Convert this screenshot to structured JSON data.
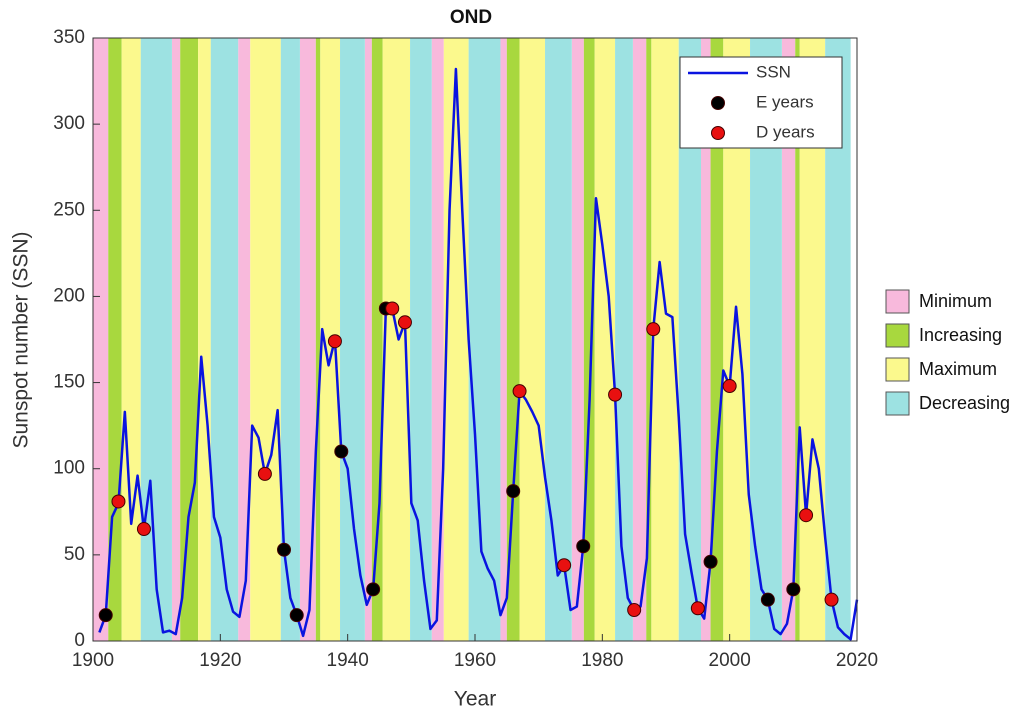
{
  "chart_data": {
    "type": "line",
    "title": "OND",
    "x_label": "Year",
    "y_label": "Sunspot number (SSN)",
    "xlim": [
      1900,
      2020
    ],
    "xticks": [
      1900,
      1920,
      1940,
      1960,
      1980,
      2000,
      2020
    ],
    "ylim": [
      0,
      350
    ],
    "yticks": [
      0,
      50,
      100,
      150,
      200,
      250,
      300,
      350
    ],
    "legend": "upper right",
    "series": [
      {
        "name": "SSN",
        "style": "line",
        "color": "#0a14e0",
        "x": [
          1901,
          1902,
          1903,
          1904,
          1905,
          1906,
          1907,
          1908,
          1909,
          1910,
          1911,
          1912,
          1913,
          1914,
          1915,
          1916,
          1917,
          1918,
          1919,
          1920,
          1921,
          1922,
          1923,
          1924,
          1925,
          1926,
          1927,
          1928,
          1929,
          1930,
          1931,
          1932,
          1933,
          1934,
          1935,
          1936,
          1937,
          1938,
          1939,
          1940,
          1941,
          1942,
          1943,
          1944,
          1945,
          1946,
          1947,
          1948,
          1949,
          1950,
          1951,
          1952,
          1953,
          1954,
          1955,
          1956,
          1957,
          1958,
          1959,
          1960,
          1961,
          1962,
          1963,
          1964,
          1965,
          1966,
          1967,
          1968,
          1969,
          1970,
          1971,
          1972,
          1973,
          1974,
          1975,
          1976,
          1977,
          1978,
          1979,
          1980,
          1981,
          1982,
          1983,
          1984,
          1985,
          1986,
          1987,
          1988,
          1989,
          1990,
          1991,
          1992,
          1993,
          1994,
          1995,
          1996,
          1997,
          1998,
          1999,
          2000,
          2001,
          2002,
          2003,
          2004,
          2005,
          2006,
          2007,
          2008,
          2009,
          2010,
          2011,
          2012,
          2013,
          2014,
          2015,
          2016,
          2017,
          2018,
          2019,
          2020
        ],
        "values": [
          5,
          15,
          72,
          80,
          133,
          68,
          96,
          65,
          93,
          30,
          5,
          6,
          4,
          25,
          72,
          92,
          165,
          125,
          72,
          60,
          30,
          17,
          14,
          35,
          125,
          118,
          97,
          108,
          134,
          53,
          25,
          15,
          3,
          18,
          110,
          181,
          160,
          175,
          110,
          100,
          65,
          38,
          21,
          30,
          80,
          193,
          193,
          175,
          185,
          80,
          70,
          35,
          7,
          12,
          100,
          250,
          332,
          250,
          175,
          120,
          52,
          42,
          35,
          15,
          25,
          87,
          145,
          140,
          133,
          125,
          95,
          70,
          38,
          44,
          18,
          20,
          55,
          140,
          257,
          230,
          200,
          143,
          55,
          25,
          18,
          20,
          48,
          181,
          220,
          190,
          188,
          130,
          62,
          40,
          19,
          13,
          46,
          110,
          157,
          148,
          194,
          155,
          85,
          55,
          30,
          24,
          7,
          4,
          10,
          30,
          124,
          73,
          117,
          100,
          60,
          24,
          8,
          4,
          1,
          24
        ]
      },
      {
        "name": "E years",
        "style": "marker",
        "color": "#000000",
        "x": [
          1902,
          1930,
          1932,
          1939,
          1944,
          1946,
          1966,
          1977,
          1997,
          2006,
          2010
        ],
        "values": [
          15,
          53,
          15,
          110,
          30,
          193,
          87,
          55,
          46,
          24,
          30
        ]
      },
      {
        "name": "D years",
        "style": "marker",
        "color": "#e81010",
        "x": [
          1904,
          1908,
          1927,
          1938,
          1947,
          1949,
          1967,
          1974,
          1982,
          1985,
          1988,
          1995,
          2000,
          2012,
          2016
        ],
        "values": [
          81,
          65,
          97,
          174,
          193,
          185,
          145,
          44,
          143,
          18,
          181,
          19,
          148,
          73,
          24
        ]
      }
    ],
    "phases": [
      {
        "name": "Minimum",
        "color": "#f8b9dc",
        "spans": [
          [
            1900,
            1902.4
          ],
          [
            1912.4,
            1913.7
          ],
          [
            1922.8,
            1924.7
          ],
          [
            1932.5,
            1935
          ],
          [
            1942.7,
            1943.8
          ],
          [
            1953.2,
            1955.1
          ],
          [
            1964,
            1965
          ],
          [
            1975.2,
            1977.1
          ],
          [
            1984.8,
            1986.9
          ],
          [
            1995.5,
            1997
          ],
          [
            2008.2,
            2010.3
          ]
        ]
      },
      {
        "name": "Increasing",
        "color": "#a8d83e",
        "spans": [
          [
            1902.4,
            1904.5
          ],
          [
            1913.7,
            1916.5
          ],
          [
            1935,
            1935.7
          ],
          [
            1943.8,
            1945.5
          ],
          [
            1965,
            1967
          ],
          [
            1977.1,
            1978.8
          ],
          [
            1986.9,
            1987.7
          ],
          [
            1997,
            1999
          ],
          [
            2010.3,
            2011
          ]
        ]
      },
      {
        "name": "Maximum",
        "color": "#fbf98d",
        "spans": [
          [
            1904.5,
            1907.5
          ],
          [
            1916.5,
            1918.5
          ],
          [
            1924.7,
            1929.5
          ],
          [
            1935.7,
            1938.8
          ],
          [
            1945.5,
            1949.8
          ],
          [
            1955.1,
            1959
          ],
          [
            1967,
            1971
          ],
          [
            1978.8,
            1982
          ],
          [
            1987.7,
            1992
          ],
          [
            1999,
            2003.2
          ],
          [
            2011,
            2015
          ]
        ]
      },
      {
        "name": "Decreasing",
        "color": "#9de2e2",
        "spans": [
          [
            1907.5,
            1912.4
          ],
          [
            1918.5,
            1922.8
          ],
          [
            1929.5,
            1932.5
          ],
          [
            1938.8,
            1942.7
          ],
          [
            1949.8,
            1953.2
          ],
          [
            1959,
            1964
          ],
          [
            1971,
            1975.2
          ],
          [
            1982,
            1984.8
          ],
          [
            1992,
            1995.5
          ],
          [
            2003.2,
            2008.2
          ],
          [
            2015,
            2019
          ]
        ]
      }
    ]
  }
}
